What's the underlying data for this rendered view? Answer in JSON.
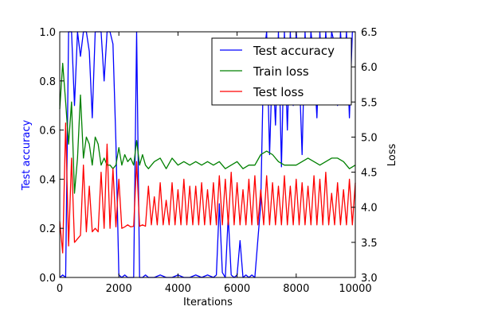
{
  "chart_data": {
    "type": "line",
    "title": "",
    "xlabel": "Iterations",
    "ylabel_left": "Test accuracy",
    "ylabel_right": "Loss",
    "xlim": [
      0,
      10000
    ],
    "ylim_left": [
      0.0,
      1.0
    ],
    "ylim_right": [
      3.0,
      6.5
    ],
    "x_ticks": [
      0,
      2000,
      4000,
      6000,
      8000,
      10000
    ],
    "x_tick_labels": [
      "0",
      "2000",
      "4000",
      "6000",
      "8000",
      "10000"
    ],
    "y_left_ticks": [
      0.0,
      0.2,
      0.4,
      0.6,
      0.8,
      1.0
    ],
    "y_left_tick_labels": [
      "0.0",
      "0.2",
      "0.4",
      "0.6",
      "0.8",
      "1.0"
    ],
    "y_right_ticks": [
      3.0,
      3.5,
      4.0,
      4.5,
      5.0,
      5.5,
      6.0,
      6.5
    ],
    "y_right_tick_labels": [
      "3.0",
      "3.5",
      "4.0",
      "4.5",
      "5.0",
      "5.5",
      "6.0",
      "6.5"
    ],
    "grid": false,
    "legend_position": "top-right",
    "colors": {
      "left_axis_label": "#0000ff"
    },
    "series": [
      {
        "name": "Test accuracy",
        "axis": "left",
        "color": "#0000ff",
        "x": [
          0,
          100,
          200,
          300,
          400,
          500,
          600,
          700,
          800,
          900,
          1000,
          1100,
          1200,
          1300,
          1400,
          1500,
          1600,
          1700,
          1800,
          1900,
          2000,
          2100,
          2200,
          2300,
          2400,
          2500,
          2600,
          2700,
          2800,
          2900,
          3000,
          3200,
          3400,
          3600,
          3800,
          4000,
          4200,
          4400,
          4600,
          4800,
          5000,
          5200,
          5300,
          5400,
          5500,
          5600,
          5700,
          5800,
          5900,
          6000,
          6100,
          6200,
          6300,
          6400,
          6500,
          6600,
          6700,
          6800,
          6900,
          7000,
          7100,
          7200,
          7300,
          7400,
          7500,
          7600,
          7700,
          7800,
          7900,
          8000,
          8100,
          8200,
          8300,
          8400,
          8500,
          8600,
          8700,
          8800,
          8900,
          9000,
          9100,
          9200,
          9300,
          9400,
          9500,
          9600,
          9700,
          9800,
          9900,
          10000
        ],
        "values": [
          0.0,
          0.01,
          0.0,
          1.0,
          1.0,
          0.7,
          1.0,
          0.9,
          1.0,
          1.0,
          0.92,
          0.65,
          1.0,
          1.0,
          1.0,
          0.8,
          1.0,
          1.0,
          0.95,
          0.55,
          0.01,
          0.0,
          0.01,
          0.0,
          0.0,
          0.0,
          1.0,
          0.0,
          0.0,
          0.01,
          0.0,
          0.0,
          0.01,
          0.0,
          0.0,
          0.01,
          0.0,
          0.0,
          0.01,
          0.0,
          0.01,
          0.0,
          0.01,
          0.3,
          0.02,
          0.0,
          0.25,
          0.01,
          0.0,
          0.01,
          0.15,
          0.0,
          0.01,
          0.0,
          0.01,
          0.0,
          0.15,
          0.3,
          0.9,
          1.0,
          0.5,
          0.9,
          0.62,
          1.0,
          0.45,
          1.0,
          0.6,
          1.0,
          0.7,
          1.0,
          0.85,
          0.5,
          1.0,
          0.72,
          1.0,
          0.88,
          0.65,
          1.0,
          0.75,
          1.0,
          0.8,
          1.0,
          0.95,
          0.7,
          1.0,
          0.8,
          1.0,
          0.65,
          1.0,
          1.0
        ]
      },
      {
        "name": "Train loss",
        "axis": "right",
        "color": "#008000",
        "x": [
          0,
          100,
          200,
          300,
          400,
          500,
          600,
          700,
          800,
          900,
          1000,
          1100,
          1200,
          1300,
          1400,
          1500,
          1600,
          1700,
          1800,
          1900,
          2000,
          2100,
          2200,
          2300,
          2400,
          2500,
          2600,
          2700,
          2800,
          2900,
          3000,
          3200,
          3400,
          3600,
          3800,
          4000,
          4200,
          4400,
          4600,
          4800,
          5000,
          5200,
          5400,
          5600,
          5800,
          6000,
          6200,
          6400,
          6600,
          6800,
          7000,
          7200,
          7400,
          7600,
          7800,
          8000,
          8200,
          8400,
          8600,
          8800,
          9000,
          9200,
          9400,
          9600,
          9800,
          10000
        ],
        "values": [
          5.4,
          6.05,
          5.5,
          4.9,
          5.5,
          4.2,
          4.7,
          5.6,
          4.7,
          5.0,
          4.9,
          4.6,
          5.0,
          4.9,
          4.6,
          4.7,
          4.6,
          4.6,
          4.55,
          4.6,
          4.85,
          4.6,
          4.75,
          4.65,
          4.7,
          4.6,
          4.95,
          4.6,
          4.75,
          4.6,
          4.55,
          4.65,
          4.7,
          4.55,
          4.7,
          4.6,
          4.65,
          4.6,
          4.65,
          4.6,
          4.65,
          4.6,
          4.65,
          4.55,
          4.6,
          4.65,
          4.55,
          4.6,
          4.6,
          4.75,
          4.8,
          4.75,
          4.65,
          4.6,
          4.6,
          4.6,
          4.65,
          4.7,
          4.65,
          4.6,
          4.65,
          4.7,
          4.7,
          4.65,
          4.55,
          4.6
        ]
      },
      {
        "name": "Test loss",
        "axis": "right",
        "color": "#ff0000",
        "x": [
          0,
          100,
          200,
          300,
          400,
          500,
          600,
          700,
          800,
          900,
          1000,
          1100,
          1200,
          1300,
          1400,
          1500,
          1600,
          1700,
          1800,
          1900,
          2000,
          2100,
          2200,
          2300,
          2400,
          2500,
          2600,
          2700,
          2800,
          2900,
          3000,
          3100,
          3200,
          3300,
          3400,
          3500,
          3600,
          3700,
          3800,
          3900,
          4000,
          4100,
          4200,
          4300,
          4400,
          4500,
          4600,
          4700,
          4800,
          4900,
          5000,
          5100,
          5200,
          5300,
          5400,
          5500,
          5600,
          5700,
          5800,
          5900,
          6000,
          6100,
          6200,
          6300,
          6400,
          6500,
          6600,
          6700,
          6800,
          6900,
          7000,
          7100,
          7200,
          7300,
          7400,
          7500,
          7600,
          7700,
          7800,
          7900,
          8000,
          8100,
          8200,
          8300,
          8400,
          8500,
          8600,
          8700,
          8800,
          8900,
          9000,
          9100,
          9200,
          9300,
          9400,
          9500,
          9600,
          9700,
          9800,
          9900,
          10000
        ],
        "values": [
          3.8,
          3.35,
          5.2,
          3.45,
          4.7,
          3.5,
          3.55,
          3.6,
          4.6,
          3.65,
          4.3,
          3.65,
          3.7,
          3.65,
          4.5,
          3.7,
          4.9,
          3.7,
          4.55,
          3.72,
          4.4,
          3.7,
          3.72,
          3.75,
          3.72,
          3.73,
          4.65,
          3.73,
          3.75,
          3.73,
          4.3,
          3.75,
          4.15,
          3.75,
          4.35,
          3.75,
          4.1,
          3.75,
          4.35,
          3.75,
          4.25,
          3.75,
          4.4,
          3.75,
          4.3,
          3.75,
          4.3,
          3.75,
          4.35,
          3.75,
          4.25,
          3.75,
          4.35,
          3.75,
          4.45,
          3.75,
          4.4,
          3.75,
          4.5,
          3.75,
          4.35,
          3.75,
          4.25,
          3.75,
          4.4,
          3.75,
          4.45,
          3.75,
          4.25,
          3.75,
          4.45,
          3.75,
          4.35,
          3.75,
          4.3,
          3.75,
          4.45,
          3.75,
          4.3,
          3.75,
          4.4,
          3.75,
          4.35,
          3.75,
          4.3,
          3.75,
          4.45,
          3.75,
          4.4,
          3.75,
          4.5,
          3.75,
          4.2,
          3.75,
          4.35,
          3.75,
          4.25,
          3.75,
          4.4,
          3.75,
          4.35
        ]
      }
    ]
  }
}
